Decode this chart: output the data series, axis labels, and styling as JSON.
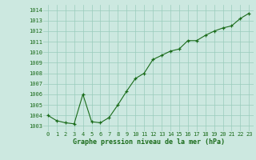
{
  "x": [
    0,
    1,
    2,
    3,
    4,
    5,
    6,
    7,
    8,
    9,
    10,
    11,
    12,
    13,
    14,
    15,
    16,
    17,
    18,
    19,
    20,
    21,
    22,
    23
  ],
  "y": [
    1004.0,
    1003.5,
    1003.3,
    1003.2,
    1006.0,
    1003.4,
    1003.3,
    1003.8,
    1005.0,
    1006.3,
    1007.5,
    1008.0,
    1009.3,
    1009.7,
    1010.1,
    1010.3,
    1011.1,
    1011.1,
    1011.6,
    1012.0,
    1012.3,
    1012.5,
    1013.2,
    1013.7
  ],
  "line_color": "#1a6b1a",
  "marker_color": "#1a6b1a",
  "bg_color": "#cce8e0",
  "grid_color": "#99ccbb",
  "title": "Graphe pression niveau de la mer (hPa)",
  "ylim_min": 1002.5,
  "ylim_max": 1014.5,
  "xlim_min": -0.5,
  "xlim_max": 23.5,
  "yticks": [
    1003,
    1004,
    1005,
    1006,
    1007,
    1008,
    1009,
    1010,
    1011,
    1012,
    1013,
    1014
  ],
  "xtick_labels": [
    "0",
    "1",
    "2",
    "3",
    "4",
    "5",
    "6",
    "7",
    "8",
    "9",
    "10",
    "11",
    "12",
    "13",
    "14",
    "15",
    "16",
    "17",
    "18",
    "19",
    "20",
    "21",
    "22",
    "23"
  ],
  "tick_fontsize": 5.0,
  "label_fontsize": 6.0
}
